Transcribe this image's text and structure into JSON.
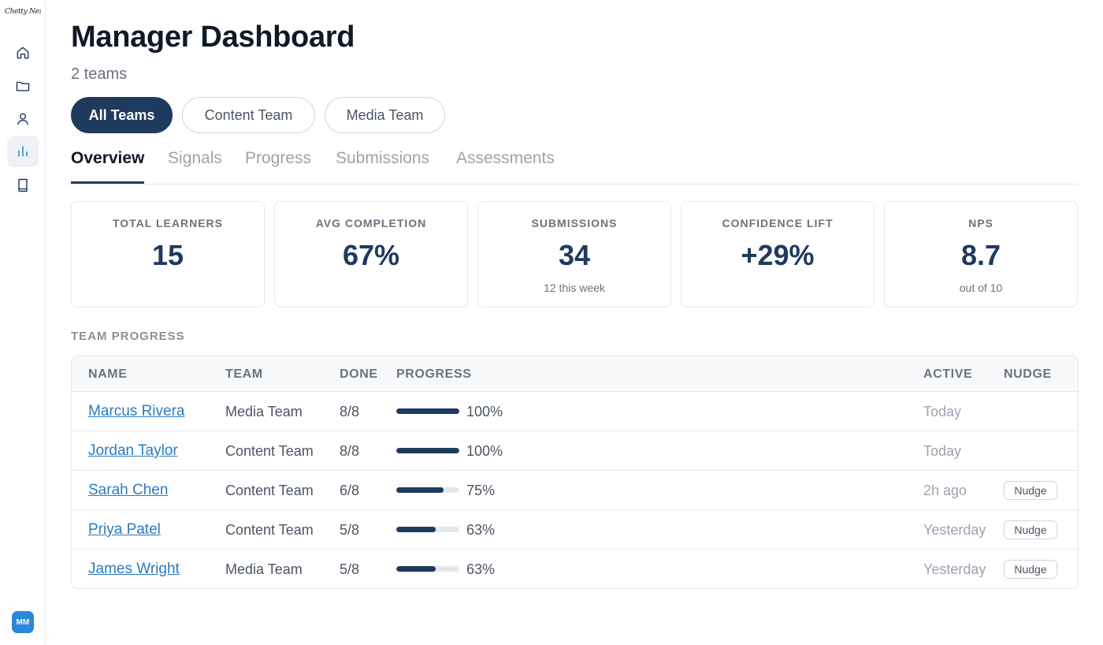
{
  "brand": {
    "logo_text": "Chetty Nest"
  },
  "sidebar": {
    "items": [
      {
        "icon": "home-icon"
      },
      {
        "icon": "folder-icon"
      },
      {
        "icon": "user-icon"
      },
      {
        "icon": "bar-chart-icon",
        "active": true
      },
      {
        "icon": "book-icon"
      }
    ],
    "avatar_initials": "MM"
  },
  "header": {
    "title": "Manager Dashboard",
    "subtitle": "2 teams"
  },
  "filters": [
    {
      "label": "All Teams",
      "active": true
    },
    {
      "label": "Content Team",
      "active": false
    },
    {
      "label": "Media Team",
      "active": false
    }
  ],
  "tabs": [
    {
      "label": "Overview",
      "active": true
    },
    {
      "label": "Signals",
      "active": false
    },
    {
      "label": "Progress",
      "active": false
    },
    {
      "label": "Submissions",
      "active": false
    },
    {
      "label": "Assessments",
      "active": false
    }
  ],
  "kpis": [
    {
      "label": "TOTAL LEARNERS",
      "value": "15",
      "note": ""
    },
    {
      "label": "AVG COMPLETION",
      "value": "67%",
      "note": ""
    },
    {
      "label": "SUBMISSIONS",
      "value": "34",
      "note": "12 this week"
    },
    {
      "label": "CONFIDENCE LIFT",
      "value": "+29%",
      "note": ""
    },
    {
      "label": "NPS",
      "value": "8.7",
      "note": "out of 10"
    }
  ],
  "team_progress": {
    "section_title": "TEAM PROGRESS",
    "columns": {
      "name": "NAME",
      "team": "TEAM",
      "done": "DONE",
      "progress": "PROGRESS",
      "active": "ACTIVE",
      "nudge": "NUDGE"
    },
    "rows": [
      {
        "name": "Marcus Rivera",
        "team": "Media Team",
        "done": "8/8",
        "progress": 1.0,
        "pct_label": "100%",
        "active": "Today",
        "nudge": ""
      },
      {
        "name": "Jordan Taylor",
        "team": "Content Team",
        "done": "8/8",
        "progress": 1.0,
        "pct_label": "100%",
        "active": "Today",
        "nudge": ""
      },
      {
        "name": "Sarah Chen",
        "team": "Content Team",
        "done": "6/8",
        "progress": 0.75,
        "pct_label": "75%",
        "active": "2h ago",
        "nudge": "Nudge"
      },
      {
        "name": "Priya Patel",
        "team": "Content Team",
        "done": "5/8",
        "progress": 0.63,
        "pct_label": "63%",
        "active": "Yesterday",
        "nudge": "Nudge"
      },
      {
        "name": "James Wright",
        "team": "Media Team",
        "done": "5/8",
        "progress": 0.63,
        "pct_label": "63%",
        "active": "Yesterday",
        "nudge": "Nudge"
      }
    ]
  },
  "colors": {
    "primary": "#1e3a5f",
    "link": "#2b7bbf",
    "avatar": "#2b88d8"
  }
}
